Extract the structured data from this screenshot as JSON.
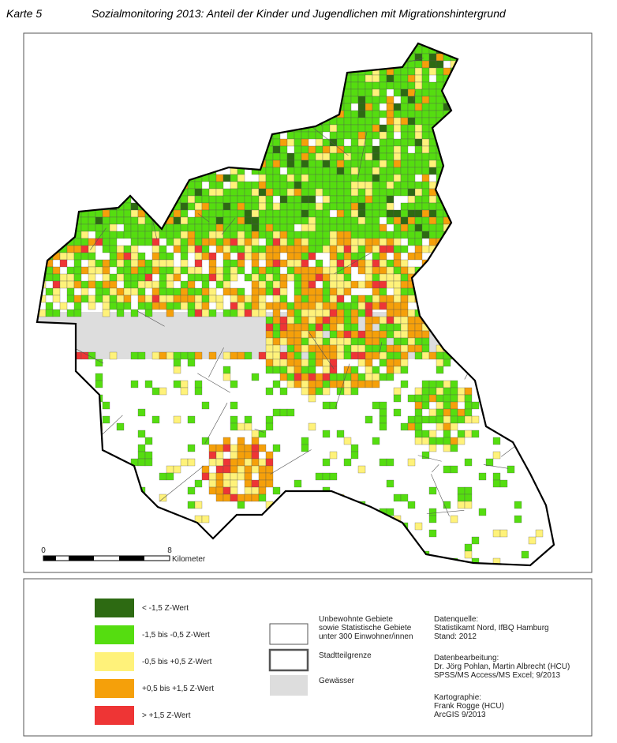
{
  "header": {
    "map_number": "Karte 5",
    "title": "Sozialmonitoring 2013: Anteil der Kinder und Jugendlichen mit Migrationshintergrund"
  },
  "scale_bar": {
    "start": "0",
    "end": "8",
    "unit": "Kilometer"
  },
  "legend": {
    "classes": [
      {
        "label": "< -1,5 Z-Wert",
        "color": "#2d6a12"
      },
      {
        "label": "-1,5 bis -0,5 Z-Wert",
        "color": "#55dd10"
      },
      {
        "label": "-0,5 bis +0,5 Z-Wert",
        "color": "#fff27a"
      },
      {
        "label": "+0,5 bis +1,5 Z-Wert",
        "color": "#f5a00a"
      },
      {
        "label": "> +1,5 Z-Wert",
        "color": "#ee3535"
      }
    ],
    "other": [
      {
        "lines": [
          "Unbewohnte Gebiete",
          "sowie Statistische Gebiete",
          "unter 300 Einwohner/innen"
        ]
      },
      {
        "lines": [
          "Stadtteilgrenze"
        ]
      },
      {
        "lines": [
          "Gewässer"
        ]
      }
    ]
  },
  "credits": [
    {
      "heading": "Datenquelle:",
      "lines": [
        "Statistikamt Nord, IfBQ Hamburg",
        "Stand: 2012"
      ]
    },
    {
      "heading": "Datenbearbeitung:",
      "lines": [
        "Dr. Jörg Pohlan, Martin Albrecht (HCU)",
        "SPSS/MS Access/MS Excel; 9/2013"
      ]
    },
    {
      "heading": "Kartographie:",
      "lines": [
        "Frank Rogge (HCU)",
        "ArcGIS 9/2013"
      ]
    }
  ]
}
